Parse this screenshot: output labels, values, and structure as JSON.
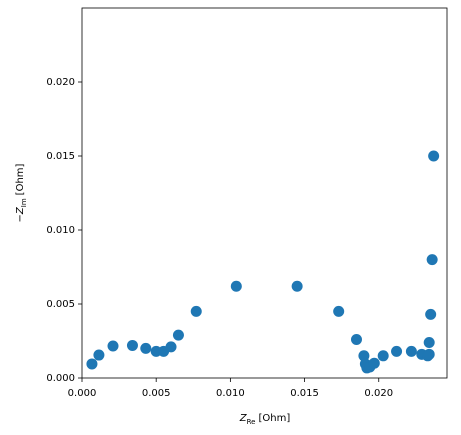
{
  "chart_data": {
    "type": "scatter",
    "xlabel": {
      "symbol": "Z",
      "subscript": "Re",
      "unit": "[Ohm]"
    },
    "ylabel": {
      "prefix": "−",
      "symbol": "Z",
      "subscript": "Im",
      "unit": "[Ohm]"
    },
    "series": [
      {
        "color": "#1f77b4",
        "x": [
          0.00067,
          0.00114,
          0.00209,
          0.0034,
          0.0043,
          0.005,
          0.0055,
          0.006,
          0.0065,
          0.0077,
          0.0104,
          0.0145,
          0.0173,
          0.0185,
          0.019,
          0.0191,
          0.0192,
          0.0194,
          0.0197,
          0.0203,
          0.0212,
          0.0222,
          0.0229,
          0.0233,
          0.0234,
          0.0234,
          0.0235,
          0.0236,
          0.0237
        ],
        "values": [
          0.00095,
          0.00155,
          0.00216,
          0.0022,
          0.002,
          0.0018,
          0.0018,
          0.0021,
          0.0029,
          0.0045,
          0.0062,
          0.0062,
          0.0045,
          0.0026,
          0.0015,
          0.00095,
          0.00068,
          0.00074,
          0.001,
          0.0015,
          0.0018,
          0.0018,
          0.0016,
          0.0015,
          0.0016,
          0.0024,
          0.0043,
          0.008,
          0.015
        ]
      }
    ],
    "xlim": [
      0,
      0.0246
    ],
    "ylim": [
      0,
      0.025
    ],
    "xticks": [
      {
        "value": 0,
        "label": "0.000"
      },
      {
        "value": 0.005,
        "label": "0.005"
      },
      {
        "value": 0.01,
        "label": "0.010"
      },
      {
        "value": 0.015,
        "label": "0.015"
      },
      {
        "value": 0.02,
        "label": "0.020"
      }
    ],
    "yticks": [
      {
        "value": 0,
        "label": "0.000"
      },
      {
        "value": 0.005,
        "label": "0.005"
      },
      {
        "value": 0.01,
        "label": "0.010"
      },
      {
        "value": 0.015,
        "label": "0.015"
      },
      {
        "value": 0.02,
        "label": "0.020"
      }
    ],
    "grid": false
  }
}
